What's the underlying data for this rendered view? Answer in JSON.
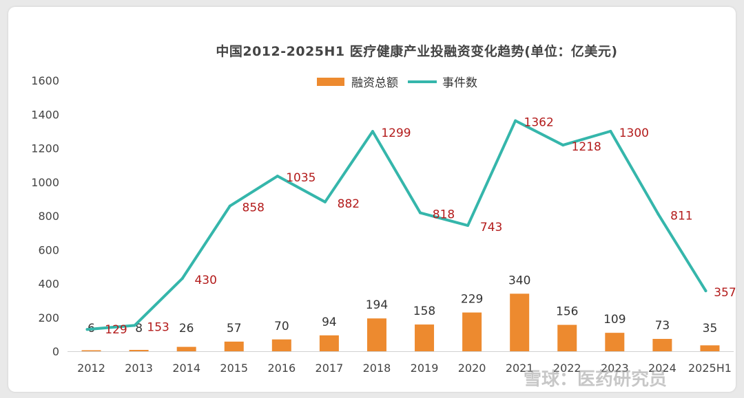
{
  "chart_data": {
    "type": "bar",
    "title": "中国2012-2025H1 医疗健康产业投融资变化趋势(单位：亿美元)",
    "categories": [
      "2012",
      "2013",
      "2014",
      "2015",
      "2016",
      "2017",
      "2018",
      "2019",
      "2020",
      "2021",
      "2022",
      "2023",
      "2024",
      "2025H1"
    ],
    "series": [
      {
        "name": "融资总额",
        "type": "bar",
        "color": "#ed8a2f",
        "values": [
          6,
          8,
          26,
          57,
          70,
          94,
          194,
          158,
          229,
          340,
          156,
          109,
          73,
          35
        ]
      },
      {
        "name": "事件数",
        "type": "line",
        "color": "#35b6ab",
        "values": [
          129,
          153,
          430,
          858,
          1035,
          882,
          1299,
          818,
          743,
          1362,
          1218,
          1300,
          811,
          357
        ]
      }
    ],
    "yticks": [
      "0",
      "200",
      "400",
      "600",
      "800",
      "1000",
      "1200",
      "1400",
      "1600"
    ],
    "ylim": [
      0,
      1600
    ],
    "grid": false,
    "legend": "top-center",
    "line_label_color": "#b31b1b"
  },
  "watermark": {
    "text": "雪球：医药研究员"
  }
}
